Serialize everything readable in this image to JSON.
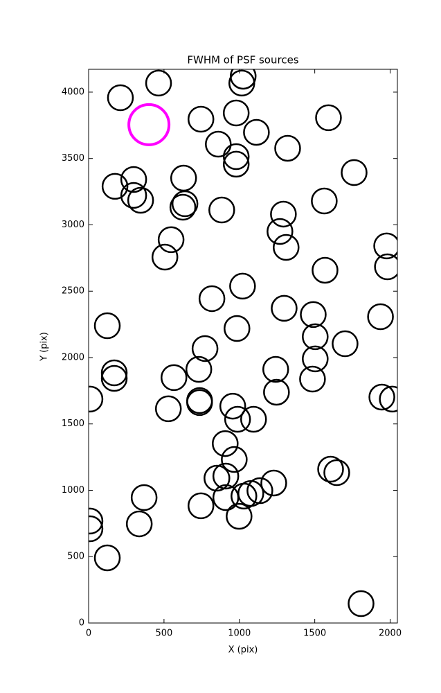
{
  "chart_data": {
    "type": "scatter",
    "title": "FWHM of PSF sources",
    "x_label": "X (pix)",
    "y_label": "Y (pix)",
    "xlim": [
      0,
      2048
    ],
    "ylim": [
      0,
      4172
    ],
    "xticks": [
      0,
      500,
      1000,
      1500,
      2000
    ],
    "yticks": [
      0,
      500,
      1000,
      1500,
      2000,
      2500,
      3000,
      3500,
      4000
    ],
    "grid": false,
    "series": [
      {
        "color": "#000000",
        "x": [
          211,
          464,
          1025,
          1016,
          745,
          979,
          1113,
          1591,
          860,
          1320,
          979,
          979,
          1761,
          299,
          630,
          175,
          299,
          345,
          639,
          625,
          1563,
          883,
          1292,
          1269,
          1310,
          547,
          506,
          1977,
          1982,
          1568,
          1021,
          818,
          1297,
          124,
          984,
          1490,
          1936,
          1503,
          1701,
          772,
          1503,
          170,
          170,
          731,
          1241,
          566,
          1485,
          9,
          1246,
          1945,
          2014,
          736,
          736,
          529,
          956,
          988,
          1094,
          906,
          966,
          851,
          910,
          1605,
          1646,
          1228,
          1136,
          1076,
          1030,
          910,
          368,
          745,
          998,
          9,
          9,
          336,
          124,
          1807
        ],
        "values": [
          3958,
          4068,
          4120,
          4068,
          3796,
          3843,
          3697,
          3807,
          3608,
          3577,
          3514,
          3457,
          3394,
          3342,
          3352,
          3290,
          3222,
          3185,
          3159,
          3133,
          3180,
          3112,
          3081,
          2950,
          2830,
          2888,
          2757,
          2841,
          2684,
          2658,
          2538,
          2444,
          2371,
          2240,
          2219,
          2324,
          2308,
          2157,
          2104,
          2068,
          1990,
          1885,
          1843,
          1911,
          1911,
          1849,
          1838,
          1687,
          1739,
          1702,
          1687,
          1676,
          1661,
          1614,
          1634,
          1535,
          1535,
          1352,
          1232,
          1091,
          1107,
          1159,
          1133,
          1055,
          997,
          976,
          956,
          945,
          945,
          883,
          804,
          768,
          710,
          747,
          491,
          146
        ]
      },
      {
        "color": "#ff00ff",
        "x": [
          400
        ],
        "values": [
          3755
        ]
      }
    ]
  }
}
